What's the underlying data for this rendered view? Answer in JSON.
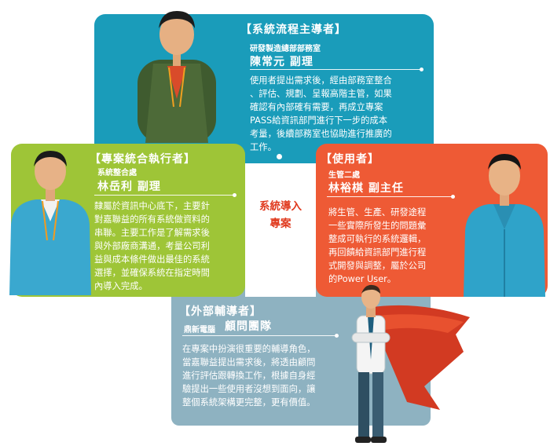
{
  "leader": {
    "heading": "【系統流程主導者】",
    "dept": "研發製造總部部務室",
    "name": "陳常元 副理",
    "lines": [
      "使用者提出需求後，經由部務室整合",
      "、評估、規劃、呈報高階主管，如果",
      "確認有內部確有需要，再成立專案",
      "PASS給資訊部門進行下一步的成本",
      "考量，後續部務室也協助進行推廣的",
      "工作。"
    ]
  },
  "executor": {
    "heading": "【專案統合執行者】",
    "dept": "系統整合處",
    "name": "林岳利 副理",
    "lines": [
      "隸屬於資訊中心底下，主要針",
      "對嘉聯益的所有系統做資料的",
      "串聯。主要工作是了解需求後",
      "與外部廠商溝通，考量公司利",
      "益與成本條件做出最佳的系統",
      "選擇，並確保系統在指定時間",
      "內導入完成。"
    ]
  },
  "user": {
    "heading": "【使用者】",
    "dept": "生管二處",
    "name": "林裕棋 副主任",
    "lines": [
      "將生管、生產、研發途程",
      "一些實際所發生的問題彙",
      "整成可執行的系統邏輯，",
      "再回饋給資訊部門進行程",
      "式開發與調整，屬於公司",
      "的Power User。"
    ]
  },
  "advisor": {
    "heading": "【外部輔導者】",
    "company": "鼎新電腦",
    "name": "顧問團隊",
    "lines": [
      "在專案中扮演很重要的輔導角色，",
      "當嘉聯益提出需求後，將透由顧問",
      "進行評估跟轉換工作，根據自身經",
      "驗提出一些使用者沒想到面向，讓",
      "整個系統架構更完整，更有價值。"
    ]
  },
  "center": {
    "line1": "系統導入",
    "line2": "專案"
  },
  "colors": {
    "teal": "#1a9cba",
    "green": "#9ec537",
    "orange": "#ee5a35",
    "grey": "#8eb2c1",
    "center_text": "#e03a1e"
  },
  "icons": [
    "person-photo",
    "superhero-illustration"
  ]
}
